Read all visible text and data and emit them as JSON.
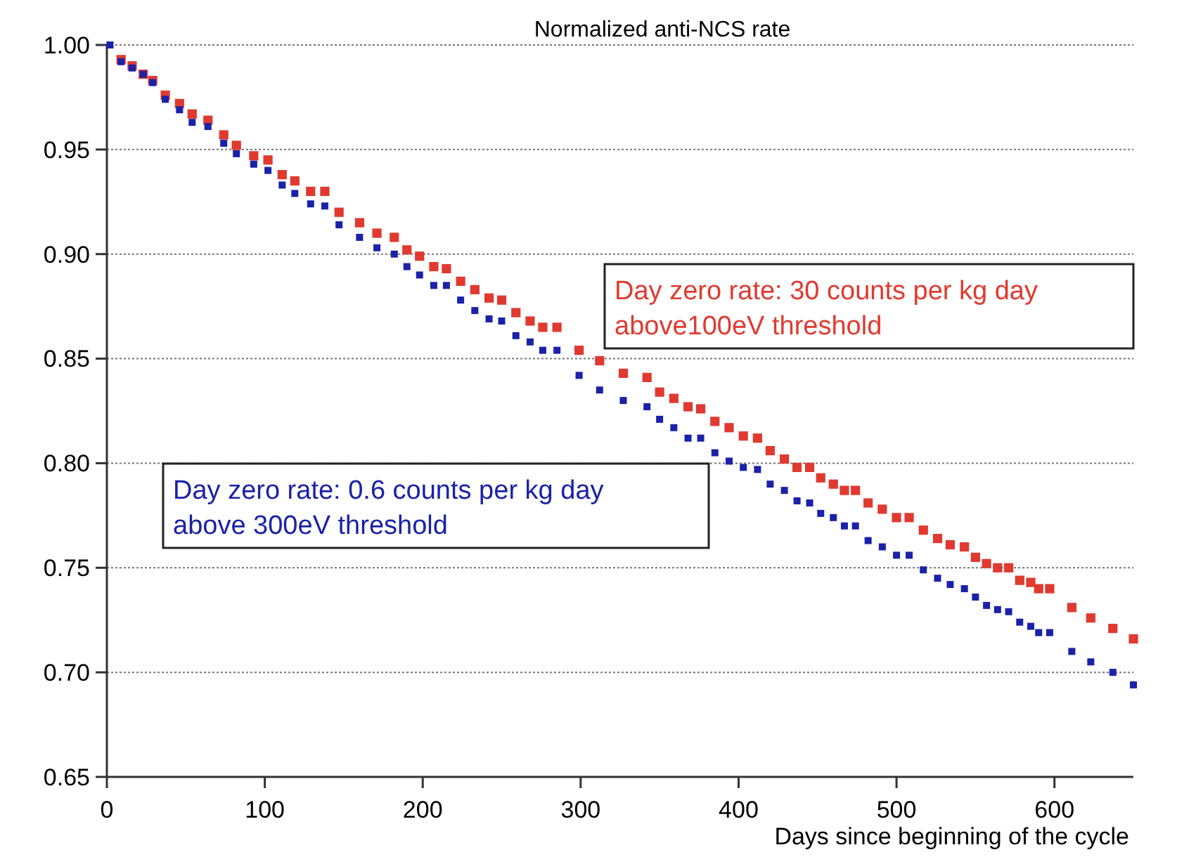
{
  "chart_data": {
    "type": "scatter",
    "title": "Normalized anti-NCS rate",
    "xlabel": "Days since beginning of the cycle",
    "x": [
      2,
      9,
      16,
      23,
      29,
      37,
      46,
      54,
      64,
      74,
      82,
      93,
      102,
      111,
      119,
      129,
      138,
      147,
      160,
      171,
      182,
      190,
      198,
      207,
      215,
      224,
      233,
      242,
      250,
      259,
      268,
      276,
      285,
      299,
      312,
      327,
      342,
      350,
      359,
      368,
      376,
      385,
      394,
      403,
      412,
      420,
      429,
      437,
      445,
      452,
      460,
      467,
      474,
      482,
      491,
      500,
      508,
      517,
      526,
      534,
      543,
      550,
      557,
      564,
      571,
      578,
      585,
      590,
      597,
      611,
      623,
      637,
      650
    ],
    "series": [
      {
        "color": "#e03a30",
        "values": [
          null,
          0.993,
          0.99,
          0.986,
          0.983,
          0.976,
          0.972,
          0.967,
          0.964,
          0.957,
          0.952,
          0.947,
          0.945,
          0.938,
          0.935,
          0.93,
          0.93,
          0.92,
          0.915,
          0.91,
          0.908,
          0.902,
          0.899,
          0.894,
          0.893,
          0.887,
          0.883,
          0.879,
          0.878,
          0.872,
          0.868,
          0.865,
          0.865,
          0.854,
          0.849,
          0.843,
          0.841,
          0.834,
          0.831,
          0.827,
          0.826,
          0.82,
          0.817,
          0.813,
          0.812,
          0.806,
          0.802,
          0.798,
          0.798,
          0.793,
          0.79,
          0.787,
          0.787,
          0.781,
          0.778,
          0.774,
          0.774,
          0.768,
          0.764,
          0.761,
          0.76,
          0.755,
          0.752,
          0.75,
          0.75,
          0.744,
          0.743,
          0.74,
          0.74,
          0.731,
          0.726,
          0.721,
          0.716
        ]
      },
      {
        "color": "#1a22a8",
        "values": [
          1.0,
          0.992,
          0.989,
          0.986,
          0.982,
          0.974,
          0.969,
          0.963,
          0.961,
          0.953,
          0.948,
          0.943,
          0.94,
          0.933,
          0.929,
          0.924,
          0.923,
          0.914,
          0.908,
          0.903,
          0.9,
          0.894,
          0.89,
          0.885,
          0.885,
          0.878,
          0.873,
          0.869,
          0.868,
          0.861,
          0.858,
          0.854,
          0.854,
          0.842,
          0.835,
          0.83,
          0.827,
          0.821,
          0.817,
          0.812,
          0.812,
          0.805,
          0.801,
          0.798,
          0.797,
          0.79,
          0.787,
          0.782,
          0.781,
          0.776,
          0.774,
          0.77,
          0.77,
          0.763,
          0.76,
          0.756,
          0.756,
          0.749,
          0.745,
          0.742,
          0.74,
          0.736,
          0.732,
          0.73,
          0.729,
          0.724,
          0.722,
          0.719,
          0.719,
          0.71,
          0.705,
          0.7,
          0.694
        ]
      }
    ],
    "annotations": [
      "Day zero rate: 30 counts per kg day\nabove100eV threshold",
      "Day zero rate: 0.6 counts per kg day\nabove 300eV threshold"
    ],
    "xlim": [
      0,
      650
    ],
    "xticks": [
      0,
      100,
      200,
      300,
      400,
      500,
      600
    ],
    "ylim": [
      0.65,
      1.0
    ],
    "yticks": [
      {
        "value": 0.65,
        "label": "0.65"
      },
      {
        "value": 0.7,
        "label": "0.70"
      },
      {
        "value": 0.75,
        "label": "0.75"
      },
      {
        "value": 0.8,
        "label": "0.80"
      },
      {
        "value": 0.85,
        "label": "0.85"
      },
      {
        "value": 0.9,
        "label": "0.90"
      },
      {
        "value": 0.95,
        "label": "0.95"
      },
      {
        "value": 1.0,
        "label": "1.00"
      }
    ],
    "grid": "y",
    "marker": "square"
  }
}
